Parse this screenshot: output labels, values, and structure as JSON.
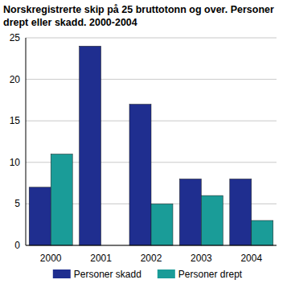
{
  "chart_data": {
    "type": "bar",
    "title": "Norskregistrerte skip på 25 bruttotonn og over. Personer drept eller skadd. 2000-2004",
    "categories": [
      "2000",
      "2001",
      "2002",
      "2003",
      "2004"
    ],
    "series": [
      {
        "name": "Personer skadd",
        "color": "#1f2e8f",
        "values": [
          7,
          24,
          17,
          8,
          8
        ]
      },
      {
        "name": "Personer drept",
        "color": "#1a9c98",
        "values": [
          11,
          0,
          5,
          6,
          3
        ]
      }
    ],
    "ylim": [
      0,
      25
    ],
    "yticks": [
      0,
      5,
      10,
      15,
      20,
      25
    ],
    "grid": true,
    "legend": "bottom"
  }
}
